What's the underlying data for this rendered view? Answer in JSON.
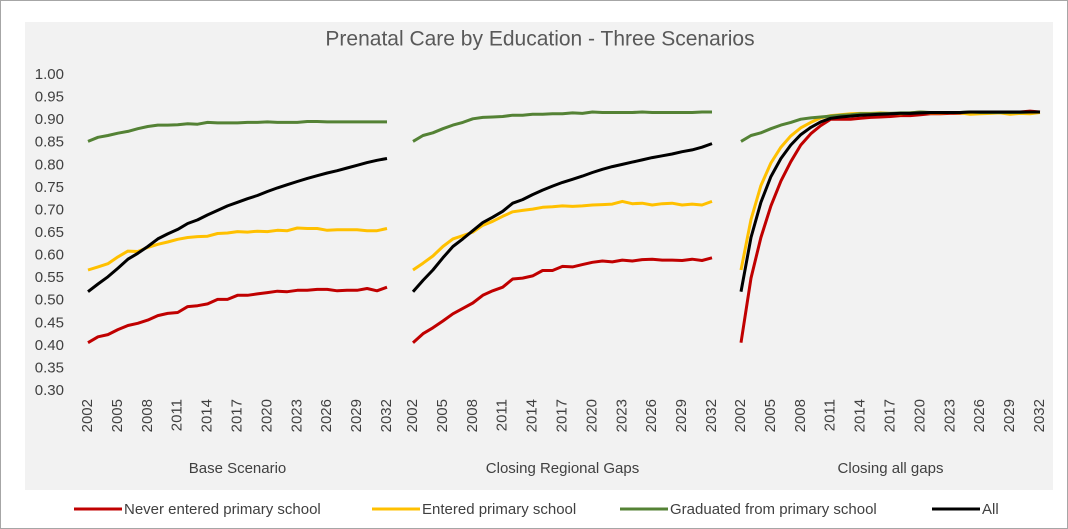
{
  "chart_data": {
    "type": "line",
    "title": "Prenatal Care by Education - Three Scenarios",
    "x": [
      2002,
      2003,
      2004,
      2005,
      2006,
      2007,
      2008,
      2009,
      2010,
      2011,
      2012,
      2013,
      2014,
      2015,
      2016,
      2017,
      2018,
      2019,
      2020,
      2021,
      2022,
      2023,
      2024,
      2025,
      2026,
      2027,
      2028,
      2029,
      2030,
      2031,
      2032
    ],
    "xlim": [
      2002,
      2032
    ],
    "xticks": [
      2002,
      2005,
      2008,
      2011,
      2014,
      2017,
      2020,
      2023,
      2026,
      2029,
      2032
    ],
    "ylim": [
      0.3,
      1.0
    ],
    "yticks": [
      {
        "value": 0.3,
        "label": "0.30"
      },
      {
        "value": 0.35,
        "label": "0.35"
      },
      {
        "value": 0.4,
        "label": "0.40"
      },
      {
        "value": 0.45,
        "label": "0.45"
      },
      {
        "value": 0.5,
        "label": "0.50"
      },
      {
        "value": 0.55,
        "label": "0.55"
      },
      {
        "value": 0.6,
        "label": "0.60"
      },
      {
        "value": 0.65,
        "label": "0.65"
      },
      {
        "value": 0.7,
        "label": "0.70"
      },
      {
        "value": 0.75,
        "label": "0.75"
      },
      {
        "value": 0.8,
        "label": "0.80"
      },
      {
        "value": 0.85,
        "label": "0.85"
      },
      {
        "value": 0.9,
        "label": "0.90"
      },
      {
        "value": 0.95,
        "label": "0.95"
      },
      {
        "value": 1.0,
        "label": "1.00"
      }
    ],
    "series": [
      {
        "name": "Never entered primary school",
        "color": "#c00000"
      },
      {
        "name": "Entered primary school",
        "color": "#ffc000"
      },
      {
        "name": "Graduated from primary school",
        "color": "#548235"
      },
      {
        "name": "All",
        "color": "#000000"
      }
    ],
    "panels": [
      {
        "label": "Base Scenario",
        "series": [
          {
            "values": [
              0.407,
              0.42,
              0.425,
              0.436,
              0.445,
              0.45,
              0.457,
              0.467,
              0.472,
              0.474,
              0.487,
              0.489,
              0.493,
              0.503,
              0.503,
              0.512,
              0.512,
              0.515,
              0.518,
              0.521,
              0.52,
              0.523,
              0.523,
              0.525,
              0.525,
              0.522,
              0.523,
              0.523,
              0.527,
              0.522,
              0.53
            ]
          },
          {
            "values": [
              0.568,
              0.575,
              0.582,
              0.597,
              0.61,
              0.609,
              0.618,
              0.625,
              0.63,
              0.636,
              0.64,
              0.642,
              0.643,
              0.649,
              0.65,
              0.653,
              0.652,
              0.654,
              0.653,
              0.656,
              0.655,
              0.661,
              0.66,
              0.66,
              0.656,
              0.657,
              0.657,
              0.657,
              0.655,
              0.655,
              0.66
            ]
          },
          {
            "values": [
              0.853,
              0.862,
              0.866,
              0.871,
              0.875,
              0.881,
              0.886,
              0.889,
              0.889,
              0.89,
              0.892,
              0.891,
              0.895,
              0.894,
              0.894,
              0.894,
              0.895,
              0.895,
              0.896,
              0.895,
              0.895,
              0.895,
              0.897,
              0.897,
              0.896,
              0.896,
              0.896,
              0.896,
              0.896,
              0.896,
              0.896
            ]
          },
          {
            "values": [
              0.52,
              0.537,
              0.553,
              0.572,
              0.592,
              0.605,
              0.62,
              0.637,
              0.648,
              0.658,
              0.671,
              0.679,
              0.69,
              0.7,
              0.71,
              0.718,
              0.726,
              0.733,
              0.742,
              0.75,
              0.757,
              0.764,
              0.771,
              0.777,
              0.783,
              0.788,
              0.794,
              0.8,
              0.806,
              0.811,
              0.815
            ]
          }
        ]
      },
      {
        "label": "Closing Regional Gaps",
        "series": [
          {
            "values": [
              0.407,
              0.427,
              0.44,
              0.455,
              0.471,
              0.483,
              0.495,
              0.512,
              0.522,
              0.53,
              0.548,
              0.55,
              0.555,
              0.567,
              0.567,
              0.576,
              0.575,
              0.58,
              0.585,
              0.588,
              0.586,
              0.59,
              0.588,
              0.591,
              0.592,
              0.59,
              0.59,
              0.589,
              0.592,
              0.589,
              0.595
            ]
          },
          {
            "values": [
              0.568,
              0.583,
              0.599,
              0.62,
              0.637,
              0.644,
              0.652,
              0.667,
              0.676,
              0.687,
              0.697,
              0.7,
              0.703,
              0.707,
              0.708,
              0.71,
              0.709,
              0.71,
              0.712,
              0.713,
              0.714,
              0.72,
              0.715,
              0.716,
              0.712,
              0.715,
              0.716,
              0.712,
              0.714,
              0.712,
              0.72
            ]
          },
          {
            "values": [
              0.853,
              0.866,
              0.872,
              0.881,
              0.889,
              0.895,
              0.903,
              0.906,
              0.907,
              0.908,
              0.911,
              0.911,
              0.913,
              0.913,
              0.914,
              0.914,
              0.916,
              0.915,
              0.918,
              0.917,
              0.917,
              0.917,
              0.917,
              0.918,
              0.917,
              0.917,
              0.917,
              0.917,
              0.917,
              0.918,
              0.918
            ]
          },
          {
            "values": [
              0.52,
              0.545,
              0.568,
              0.595,
              0.62,
              0.637,
              0.655,
              0.673,
              0.685,
              0.698,
              0.716,
              0.724,
              0.735,
              0.745,
              0.754,
              0.762,
              0.769,
              0.776,
              0.784,
              0.791,
              0.797,
              0.802,
              0.807,
              0.812,
              0.817,
              0.821,
              0.825,
              0.83,
              0.834,
              0.84,
              0.848
            ]
          }
        ]
      },
      {
        "label": "Closing all gaps",
        "series": [
          {
            "values": [
              0.407,
              0.55,
              0.64,
              0.71,
              0.765,
              0.808,
              0.845,
              0.87,
              0.888,
              0.902,
              0.902,
              0.902,
              0.904,
              0.906,
              0.907,
              0.908,
              0.91,
              0.91,
              0.912,
              0.914,
              0.914,
              0.915,
              0.915,
              0.916,
              0.916,
              0.916,
              0.917,
              0.918,
              0.918,
              0.92,
              0.918
            ]
          },
          {
            "values": [
              0.568,
              0.68,
              0.755,
              0.805,
              0.84,
              0.865,
              0.883,
              0.895,
              0.905,
              0.91,
              0.912,
              0.914,
              0.915,
              0.915,
              0.916,
              0.915,
              0.914,
              0.916,
              0.918,
              0.916,
              0.916,
              0.917,
              0.916,
              0.913,
              0.914,
              0.915,
              0.916,
              0.913,
              0.915,
              0.914,
              0.917
            ]
          },
          {
            "values": [
              0.853,
              0.866,
              0.872,
              0.881,
              0.889,
              0.895,
              0.902,
              0.905,
              0.907,
              0.909,
              0.911,
              0.912,
              0.914,
              0.914,
              0.915,
              0.915,
              0.916,
              0.916,
              0.918,
              0.917,
              0.917,
              0.917,
              0.917,
              0.918,
              0.917,
              0.917,
              0.917,
              0.917,
              0.917,
              0.918,
              0.918
            ]
          },
          {
            "values": [
              0.52,
              0.64,
              0.718,
              0.775,
              0.815,
              0.845,
              0.868,
              0.884,
              0.896,
              0.904,
              0.907,
              0.909,
              0.911,
              0.912,
              0.913,
              0.914,
              0.915,
              0.915,
              0.916,
              0.917,
              0.917,
              0.917,
              0.917,
              0.918,
              0.918,
              0.918,
              0.918,
              0.918,
              0.918,
              0.918,
              0.918
            ]
          }
        ]
      }
    ]
  }
}
